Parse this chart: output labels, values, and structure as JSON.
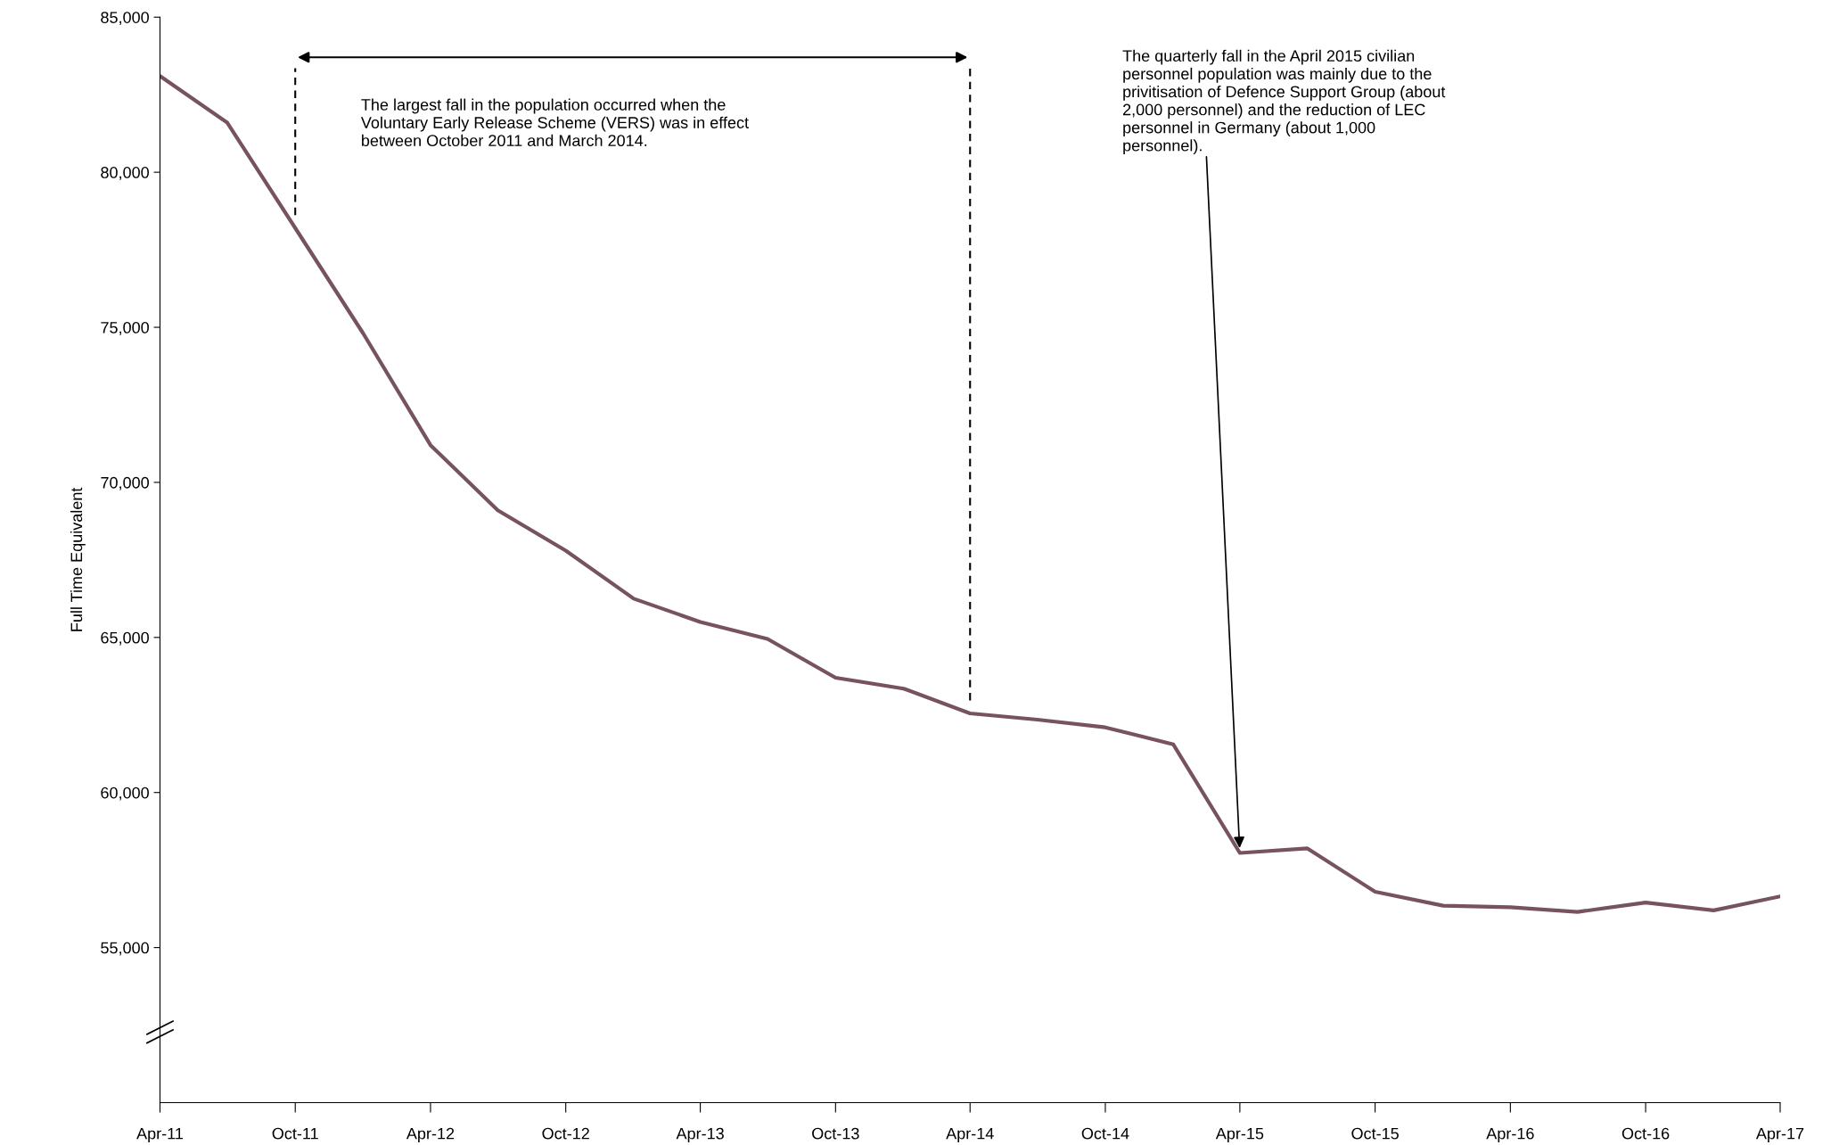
{
  "chart_data": {
    "type": "line",
    "ylabel": "Full Time Equivalent",
    "x": [
      "2011-04",
      "2011-07",
      "2011-10",
      "2012-01",
      "2012-04",
      "2012-07",
      "2012-10",
      "2013-01",
      "2013-04",
      "2013-07",
      "2013-10",
      "2014-01",
      "2014-04",
      "2014-07",
      "2014-10",
      "2015-01",
      "2015-04",
      "2015-07",
      "2015-10",
      "2016-01",
      "2016-04",
      "2016-07",
      "2016-10",
      "2017-01",
      "2017-04"
    ],
    "series": [
      {
        "color": "#76535f",
        "values": [
          83100,
          81600,
          78200,
          74800,
          71200,
          69100,
          67800,
          66250,
          65500,
          64950,
          63700,
          63350,
          62550,
          62350,
          62100,
          61550,
          58050,
          58200,
          56800,
          56350,
          56300,
          56150,
          56450,
          56200,
          56650
        ]
      }
    ],
    "xlim": [
      "2011-04",
      "2017-04"
    ],
    "xticks": [
      {
        "value": "2011-04",
        "label": "Apr-11"
      },
      {
        "value": "2011-10",
        "label": "Oct-11"
      },
      {
        "value": "2012-04",
        "label": "Apr-12"
      },
      {
        "value": "2012-10",
        "label": "Oct-12"
      },
      {
        "value": "2013-04",
        "label": "Apr-13"
      },
      {
        "value": "2013-10",
        "label": "Oct-13"
      },
      {
        "value": "2014-04",
        "label": "Apr-14"
      },
      {
        "value": "2014-10",
        "label": "Oct-14"
      },
      {
        "value": "2015-04",
        "label": "Apr-15"
      },
      {
        "value": "2015-10",
        "label": "Oct-15"
      },
      {
        "value": "2016-04",
        "label": "Apr-16"
      },
      {
        "value": "2016-10",
        "label": "Oct-16"
      },
      {
        "value": "2017-04",
        "label": "Apr-17"
      }
    ],
    "ylim": [
      50000,
      85000
    ],
    "yticks": [
      {
        "value": 55000,
        "label": "55,000"
      },
      {
        "value": 60000,
        "label": "60,000"
      },
      {
        "value": 65000,
        "label": "65,000"
      },
      {
        "value": 70000,
        "label": "70,000"
      },
      {
        "value": 75000,
        "label": "75,000"
      },
      {
        "value": 80000,
        "label": "80,000"
      },
      {
        "value": 85000,
        "label": "85,000"
      }
    ],
    "ref_lines": [
      {
        "axis": "x",
        "value": "2011-10",
        "line_style": "dashed",
        "color": "#000000"
      },
      {
        "axis": "x",
        "value": "2014-04",
        "line_style": "dashed",
        "color": "#000000"
      }
    ],
    "annotations": [
      "The largest fall in the population occurred when the\nVoluntary Early Release Scheme (VERS) was in effect\nbetween October 2011 and March 2014.",
      {
        "text": "The quarterly fall in the April 2015 civilian\npersonnel population was mainly due to the\nprivitisation of Defence Support Group (about\n2,000 personnel) and the reduction of LEC\npersonnel in Germany (about 1,000\npersonnel).",
        "x": "2015-04",
        "y": 58050
      }
    ],
    "grid": false,
    "legend": false,
    "marker": "none",
    "line_style": "solid"
  }
}
